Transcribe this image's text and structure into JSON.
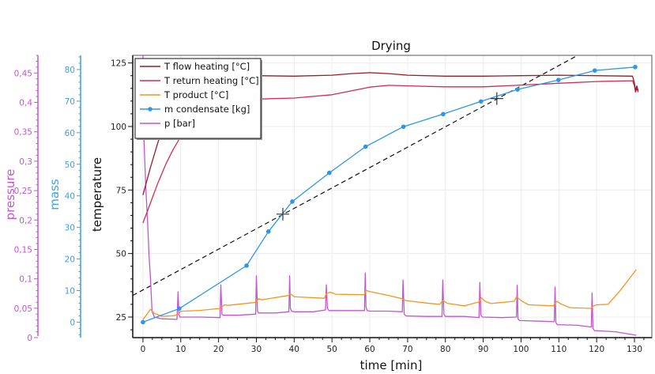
{
  "chart_data": {
    "type": "line",
    "title": "Drying",
    "xlabel": "time [min]",
    "xlim": [
      -2.7,
      134.6
    ],
    "xticks": [
      0,
      10,
      20,
      30,
      40,
      50,
      60,
      70,
      80,
      90,
      100,
      110,
      120,
      130
    ],
    "grid": true,
    "legend_position": "top-left",
    "axes": {
      "temperature": {
        "label": "temperature",
        "ylim": [
          16.9,
          128
        ],
        "ticks": [
          25,
          50,
          75,
          100,
          125
        ],
        "color": "#111111"
      },
      "mass": {
        "label": "mass",
        "ylim": [
          -4.9,
          84.5
        ],
        "ticks": [
          0,
          10,
          20,
          30,
          40,
          50,
          60,
          70,
          80
        ],
        "color": "#3aa0e8"
      },
      "pressure": {
        "label": "pressure",
        "ylim": [
          0,
          0.48
        ],
        "ticks": [
          0,
          0.05,
          0.1,
          0.15,
          0.2,
          0.25,
          0.3,
          0.35,
          0.4,
          0.45
        ],
        "tick_labels": [
          "0",
          "0,05",
          "0,1",
          "0,15",
          "0,2",
          "0,25",
          "0,3",
          "0,35",
          "0,4",
          "0,45"
        ],
        "color": "#c455d0"
      }
    },
    "series": [
      {
        "name": "T flow heating [°C]",
        "axis": "temperature",
        "color": "#9b1c22",
        "x": [
          0,
          2,
          4,
          6,
          8,
          10,
          15,
          20,
          30,
          40,
          50,
          55,
          60,
          65,
          70,
          80,
          90,
          100,
          110,
          120,
          129.5,
          130,
          130.3,
          130.6,
          131
        ],
        "y": [
          73,
          84,
          94,
          102,
          108,
          113,
          117.5,
          119.5,
          120,
          119.8,
          120.2,
          120.8,
          121.2,
          120.8,
          120.2,
          119.8,
          119.8,
          120,
          120.2,
          120,
          119.8,
          117,
          114,
          116,
          114
        ]
      },
      {
        "name": "T return heating [°C]",
        "axis": "temperature",
        "color": "#d62a4e",
        "x": [
          0,
          2,
          4,
          6,
          8,
          10,
          15,
          20,
          30,
          40,
          50,
          55,
          60,
          65,
          70,
          80,
          90,
          100,
          110,
          120,
          129.5,
          130,
          130.3,
          130.6,
          131
        ],
        "y": [
          62,
          70,
          78,
          85,
          91,
          96,
          103,
          108,
          110.8,
          111.2,
          112.5,
          114,
          115.5,
          116.2,
          116,
          115.6,
          115.6,
          116.3,
          117,
          117.7,
          118,
          116,
          113.5,
          115,
          113.5
        ]
      },
      {
        "name": "T product [°C]",
        "axis": "temperature",
        "color": "#f7941d",
        "x": [
          0,
          1,
          2,
          3,
          5,
          8,
          9.3,
          10,
          15,
          20.5,
          21.5,
          22.5,
          30,
          30.5,
          31.5,
          38.5,
          39,
          40,
          48,
          48.5,
          49.5,
          51,
          58.5,
          59,
          60,
          65,
          68.5,
          69.5,
          75,
          78.5,
          79.3,
          80.5,
          85,
          88.8,
          89.5,
          90.5,
          92,
          98.2,
          98.8,
          100,
          102,
          108.5,
          109.5,
          110.5,
          113,
          118.5,
          119.2,
          120,
          123,
          126,
          130.5
        ],
        "y": [
          24,
          26,
          28,
          26.5,
          25.3,
          25.5,
          26,
          27.3,
          27.6,
          28.4,
          29.8,
          29.6,
          30.8,
          32.2,
          31.8,
          33.5,
          34.2,
          33,
          32.4,
          34.2,
          34.8,
          34,
          33.8,
          35.5,
          35,
          33.5,
          32.2,
          31.5,
          30.5,
          30,
          31.6,
          30.4,
          29.4,
          30.9,
          32.6,
          31.2,
          30.3,
          31.2,
          33,
          31.5,
          29.8,
          29.4,
          31.2,
          30.2,
          28.7,
          28.4,
          29.4,
          29.8,
          30,
          35,
          43.7
        ]
      },
      {
        "name": "m condensate [kg]",
        "axis": "mass",
        "color": "#2e95e8",
        "marker": "circle",
        "x": [
          0,
          9.6,
          27.4,
          33.2,
          39.5,
          49.3,
          58.9,
          68.9,
          79.4,
          89.4,
          99.1,
          109.9,
          119.5,
          130.2
        ],
        "y": [
          0,
          4.3,
          17.9,
          28.7,
          38.2,
          47.3,
          55.6,
          61.9,
          65.9,
          69.9,
          73.7,
          76.7,
          79.7,
          80.8
        ]
      },
      {
        "name": "p [bar]",
        "axis": "pressure",
        "color": "#c455d0",
        "x": [
          0,
          0.3,
          0.8,
          1.2,
          1.6,
          2,
          2.4,
          3,
          5,
          9,
          9.3,
          9.5,
          9.8,
          10.2,
          15,
          20.4,
          20.6,
          20.9,
          21.2,
          25,
          29.8,
          30,
          30.3,
          30.6,
          35,
          38.6,
          38.8,
          39,
          39.3,
          40,
          45,
          48.3,
          48.5,
          48.8,
          49.2,
          55,
          58.6,
          58.8,
          59,
          59.3,
          60,
          65,
          68.6,
          68.8,
          69.1,
          69.5,
          75,
          79.1,
          79.3,
          79.6,
          80,
          85,
          88.9,
          89.1,
          89.4,
          89.8,
          95,
          98.8,
          99,
          99.2,
          99.6,
          105,
          108.8,
          109,
          109.2,
          109.6,
          115,
          118.6,
          118.8,
          119,
          119.4,
          125,
          130.5
        ],
        "y": [
          0.48,
          0.33,
          0.25,
          0.2,
          0.14,
          0.1,
          0.045,
          0.035,
          0.032,
          0.031,
          0.078,
          0.04,
          0.035,
          0.035,
          0.035,
          0.034,
          0.09,
          0.04,
          0.038,
          0.038,
          0.04,
          0.105,
          0.045,
          0.042,
          0.042,
          0.044,
          0.105,
          0.05,
          0.045,
          0.044,
          0.044,
          0.047,
          0.09,
          0.05,
          0.046,
          0.046,
          0.046,
          0.11,
          0.052,
          0.046,
          0.045,
          0.045,
          0.044,
          0.098,
          0.04,
          0.037,
          0.036,
          0.036,
          0.098,
          0.04,
          0.036,
          0.036,
          0.034,
          0.094,
          0.038,
          0.035,
          0.034,
          0.035,
          0.089,
          0.032,
          0.029,
          0.028,
          0.027,
          0.086,
          0.026,
          0.022,
          0.021,
          0.018,
          0.076,
          0.016,
          0.012,
          0.01,
          0.004
        ]
      }
    ],
    "tangent_line": {
      "style": "dashed",
      "color": "#111111",
      "axis": "temperature",
      "x": [
        -2.7,
        115
      ],
      "y": [
        33.5,
        128
      ]
    },
    "markers": [
      {
        "name": "cross-marker-1",
        "x": 37.0,
        "y": 65.5,
        "axis": "temperature"
      },
      {
        "name": "cross-marker-2",
        "x": 93.6,
        "y": 111.0,
        "axis": "temperature"
      }
    ]
  }
}
